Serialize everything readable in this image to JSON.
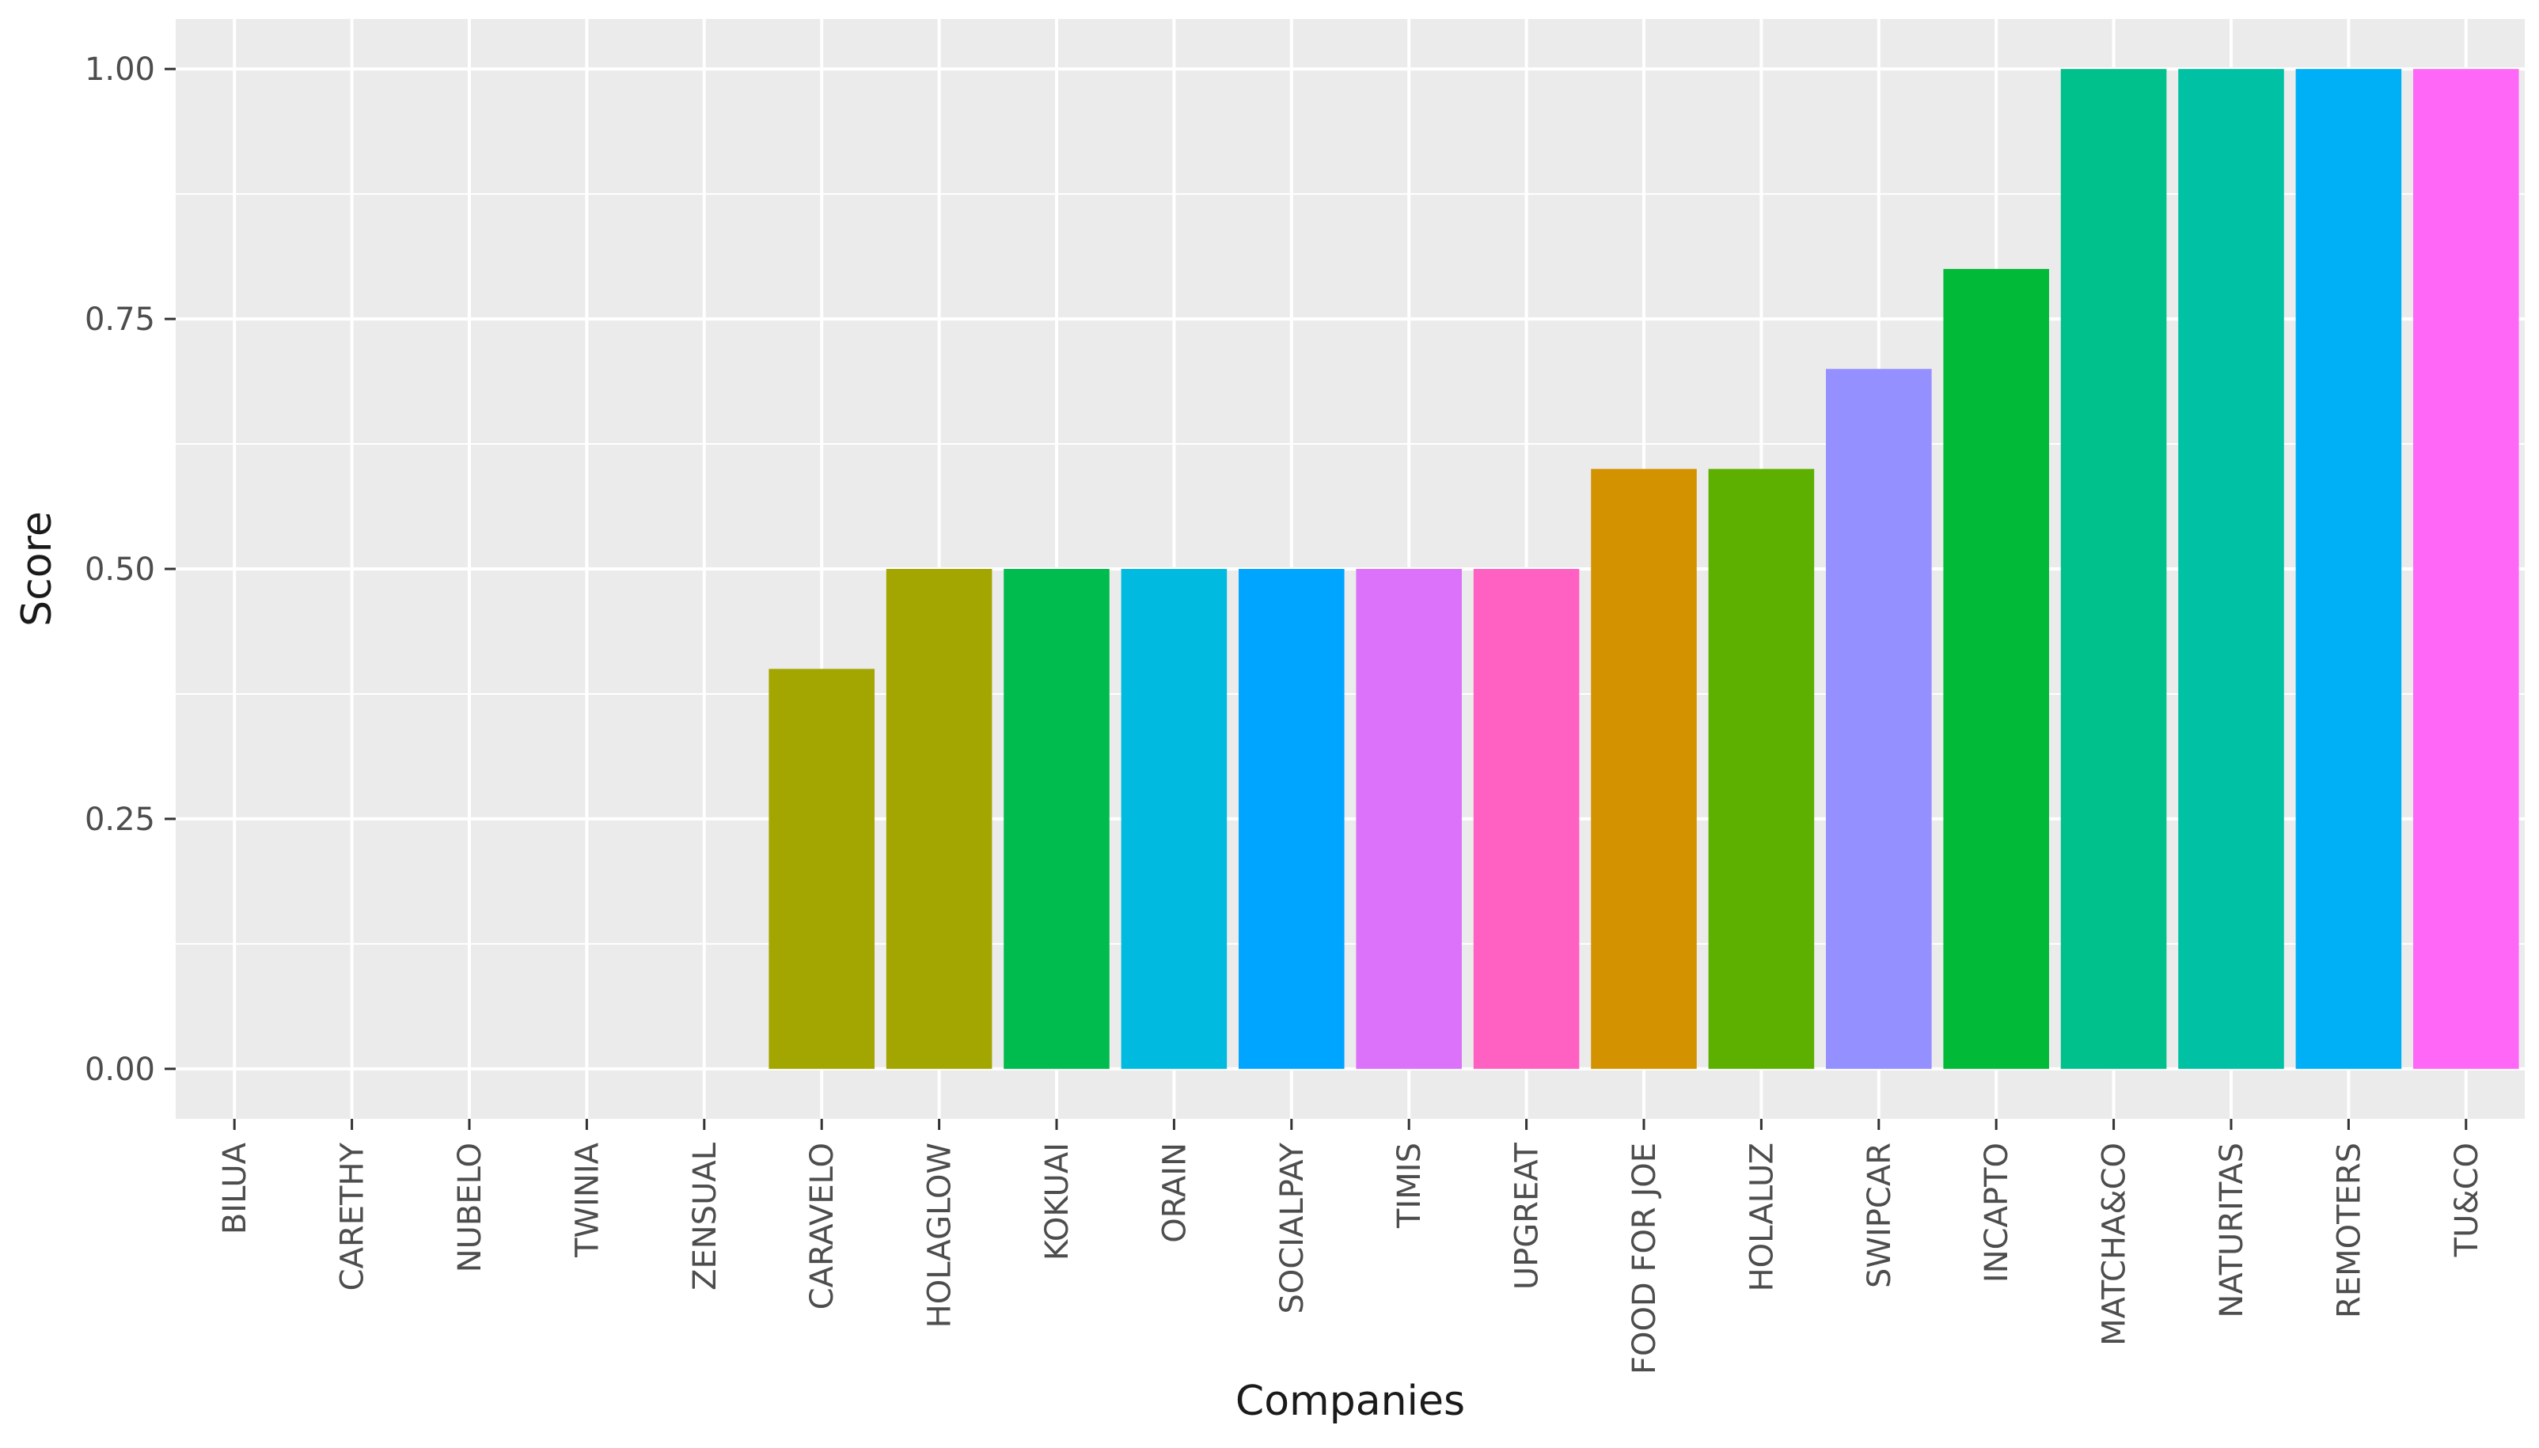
{
  "chart_data": {
    "type": "bar",
    "title": "",
    "xlabel": "Companies",
    "ylabel": "Score",
    "ylim": [
      -0.05,
      1.05
    ],
    "yticks": [
      {
        "value": 0,
        "label": "0.00"
      },
      {
        "value": 0.25,
        "label": "0.25"
      },
      {
        "value": 0.5,
        "label": "0.50"
      },
      {
        "value": 0.75,
        "label": "0.75"
      },
      {
        "value": 1,
        "label": "1.00"
      }
    ],
    "grid": true,
    "legend": "none",
    "panel_background": "#ebebeb",
    "grid_color": "#ffffff",
    "categories": [
      "BILUA",
      "CARETHY",
      "NUBELO",
      "TWINIA",
      "ZENSUAL",
      "CARAVELO",
      "HOLAGLOW",
      "KOKUAI",
      "ORAIN",
      "SOCIALPAY",
      "TIMIS",
      "UPGREAT",
      "FOOD FOR JOE",
      "HOLALUZ",
      "SWIPCAR",
      "INCAPTO",
      "MATCHA&CO",
      "NATURITAS",
      "REMOTERS",
      "TU&CO"
    ],
    "values": [
      0,
      0,
      0,
      0,
      0,
      0.4,
      0.5,
      0.5,
      0.5,
      0.5,
      0.5,
      0.5,
      0.6,
      0.6,
      0.7,
      0.8,
      1.0,
      1.0,
      1.0,
      1.0
    ],
    "colors": [
      "#f8766d",
      "#ea8331",
      "#d89000",
      "#c09b00",
      "#fd8327",
      "#a3a500",
      "#a3a500",
      "#00bb4e",
      "#00bae0",
      "#00a5ff",
      "#dc71fa",
      "#ff61c3",
      "#d39200",
      "#5db000",
      "#9590ff",
      "#00ba38",
      "#00c08b",
      "#00c1a3",
      "#00b0f6",
      "#ff68f7"
    ]
  }
}
